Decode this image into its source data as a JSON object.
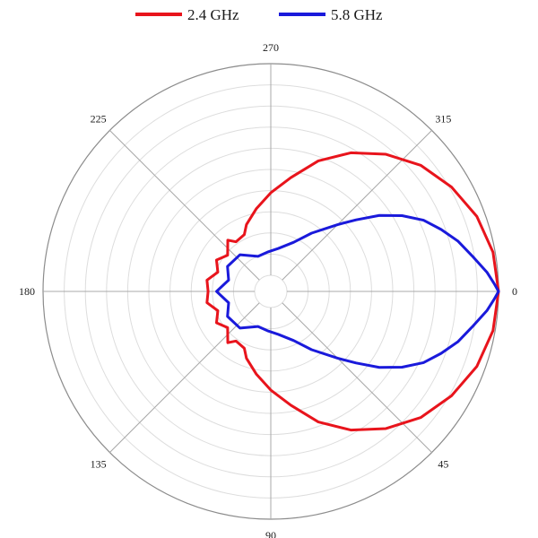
{
  "chart_data": {
    "type": "line",
    "subtype": "polar",
    "title": "",
    "angle_direction": "clockwise",
    "zero_angle": "right",
    "angular_ticks": [
      "0",
      "45",
      "90",
      "135",
      "180",
      "225",
      "270",
      "315"
    ],
    "radial_rings": 10,
    "center_hole": true,
    "grid": true,
    "legend_position": "top-center",
    "series": [
      {
        "name": "2.4 GHz",
        "color": "#e8141c",
        "points": [
          [
            0,
            1.0
          ],
          [
            10,
            0.99
          ],
          [
            20,
            0.96
          ],
          [
            30,
            0.91
          ],
          [
            40,
            0.85
          ],
          [
            50,
            0.77
          ],
          [
            60,
            0.68
          ],
          [
            70,
            0.58
          ],
          [
            80,
            0.47
          ],
          [
            90,
            0.39
          ],
          [
            100,
            0.32
          ],
          [
            110,
            0.26
          ],
          [
            115,
            0.22
          ],
          [
            125,
            0.21
          ],
          [
            130,
            0.24
          ],
          [
            140,
            0.19
          ],
          [
            150,
            0.22
          ],
          [
            160,
            0.19
          ],
          [
            170,
            0.23
          ],
          [
            180,
            0.22
          ],
          [
            190,
            0.23
          ],
          [
            200,
            0.19
          ],
          [
            210,
            0.22
          ],
          [
            220,
            0.19
          ],
          [
            230,
            0.24
          ],
          [
            235,
            0.21
          ],
          [
            245,
            0.22
          ],
          [
            250,
            0.26
          ],
          [
            260,
            0.32
          ],
          [
            270,
            0.39
          ],
          [
            280,
            0.47
          ],
          [
            290,
            0.58
          ],
          [
            300,
            0.68
          ],
          [
            310,
            0.77
          ],
          [
            320,
            0.85
          ],
          [
            330,
            0.91
          ],
          [
            340,
            0.96
          ],
          [
            350,
            0.99
          ],
          [
            360,
            1.0
          ]
        ]
      },
      {
        "name": "5.8 GHz",
        "color": "#1a1adb",
        "points": [
          [
            0,
            1.0
          ],
          [
            2,
            0.98
          ],
          [
            5,
            0.95
          ],
          [
            10,
            0.89
          ],
          [
            15,
            0.84
          ],
          [
            20,
            0.78
          ],
          [
            25,
            0.72
          ],
          [
            30,
            0.64
          ],
          [
            35,
            0.55
          ],
          [
            40,
            0.45
          ],
          [
            45,
            0.37
          ],
          [
            55,
            0.26
          ],
          [
            65,
            0.18
          ],
          [
            80,
            0.13
          ],
          [
            95,
            0.11
          ],
          [
            110,
            0.1
          ],
          [
            130,
            0.15
          ],
          [
            150,
            0.16
          ],
          [
            165,
            0.13
          ],
          [
            180,
            0.18
          ],
          [
            195,
            0.13
          ],
          [
            210,
            0.16
          ],
          [
            230,
            0.15
          ],
          [
            250,
            0.1
          ],
          [
            265,
            0.11
          ],
          [
            280,
            0.13
          ],
          [
            295,
            0.18
          ],
          [
            305,
            0.26
          ],
          [
            315,
            0.37
          ],
          [
            320,
            0.45
          ],
          [
            325,
            0.55
          ],
          [
            330,
            0.64
          ],
          [
            335,
            0.72
          ],
          [
            340,
            0.78
          ],
          [
            345,
            0.84
          ],
          [
            350,
            0.89
          ],
          [
            355,
            0.95
          ],
          [
            358,
            0.98
          ],
          [
            360,
            1.0
          ]
        ]
      }
    ]
  }
}
